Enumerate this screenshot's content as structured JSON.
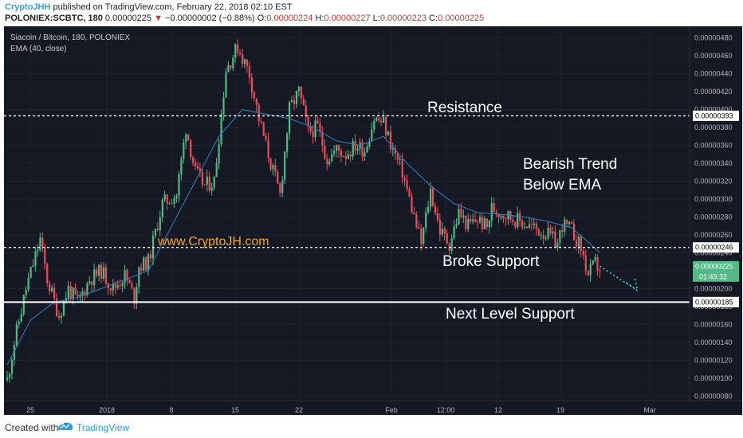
{
  "header": {
    "author": "CryptoJHH",
    "published": "published on TradingView.com, February 22, 2018 02:10 EST",
    "symbol": "POLONIEX:SCBTC, 180",
    "last": "0.00000225",
    "change_arrow": "▼",
    "change": "−0.00000002 (−0.88%)",
    "o_label": "O:",
    "o": "0.00000224",
    "h_label": "H:",
    "h": "0.00000227",
    "l_label": "L:",
    "l": "0.00000223",
    "c_label": "C:",
    "c": "0.00000225"
  },
  "legend": {
    "title": "Siacoin / Bitcoin, 180, POLONIEX",
    "indicator": "EMA (40, close)"
  },
  "annotations": {
    "resistance": "Resistance",
    "bearish_line1": "Bearish Trend",
    "bearish_line2": "Below EMA",
    "website": "www.CryptoJH.com",
    "broke_support": "Broke Support",
    "next_support": "Next Level Support"
  },
  "price_badges": {
    "resistance": "0.00000393",
    "support": "0.00000246",
    "next_support": "0.00000185",
    "current": "0.00000225",
    "countdown": "01:49:32"
  },
  "footer": {
    "created": "Created with",
    "brand": "TradingView"
  },
  "colors": {
    "background": "#151924",
    "up_candle": "#53b987",
    "down_candle": "#eb4d5c",
    "ema_line": "#3a7fc1",
    "website_text": "#f5a623",
    "projection": "#4dd0e1",
    "current_badge": "#53b987"
  },
  "chart_data": {
    "type": "candlestick",
    "y_ticks": [
      "0.00000480",
      "0.00000460",
      "0.00000440",
      "0.00000420",
      "0.00000400",
      "0.00000380",
      "0.00000360",
      "0.00000340",
      "0.00000320",
      "0.00000300",
      "0.00000280",
      "0.00000260",
      "0.00000240",
      "0.00000220",
      "0.00000200",
      "0.00000180",
      "0.00000160",
      "0.00000140",
      "0.00000120",
      "0.00000100",
      "0.00000080"
    ],
    "x_ticks": [
      "25",
      "2018",
      "8",
      "15",
      "22",
      "Feb",
      "12:00",
      "12",
      "19",
      "Mar"
    ],
    "ylim": [
      7.5e-07,
      4.93e-06
    ],
    "levels": [
      {
        "name": "resistance",
        "value": 3.93e-06,
        "style": "dashed"
      },
      {
        "name": "support",
        "value": 2.46e-06,
        "style": "dashed"
      },
      {
        "name": "next_support",
        "value": 1.85e-06,
        "style": "solid"
      }
    ],
    "price_path": [
      [
        0,
        9.8e-07
      ],
      [
        3,
        1.4e-06
      ],
      [
        8,
        2e-06
      ],
      [
        14,
        2.55e-06
      ],
      [
        17,
        2.1e-06
      ],
      [
        22,
        1.7e-06
      ],
      [
        26,
        2e-06
      ],
      [
        30,
        1.85e-06
      ],
      [
        35,
        2.1e-06
      ],
      [
        40,
        2.2e-06
      ],
      [
        45,
        2e-06
      ],
      [
        50,
        2.15e-06
      ],
      [
        54,
        1.9e-06
      ],
      [
        56,
        2.25e-06
      ],
      [
        60,
        2.3e-06
      ],
      [
        66,
        2.95e-06
      ],
      [
        72,
        3.05e-06
      ],
      [
        76,
        3.8e-06
      ],
      [
        80,
        3.3e-06
      ],
      [
        84,
        3.15e-06
      ],
      [
        88,
        3.2e-06
      ],
      [
        93,
        4.45e-06
      ],
      [
        98,
        4.7e-06
      ],
      [
        103,
        4.4e-06
      ],
      [
        107,
        3.9e-06
      ],
      [
        112,
        3.4e-06
      ],
      [
        116,
        3.05e-06
      ],
      [
        120,
        4e-06
      ],
      [
        124,
        4.2e-06
      ],
      [
        128,
        3.75e-06
      ],
      [
        132,
        3.8e-06
      ],
      [
        136,
        3.45e-06
      ],
      [
        140,
        3.55e-06
      ],
      [
        144,
        3.5e-06
      ],
      [
        148,
        3.6e-06
      ],
      [
        152,
        3.55e-06
      ],
      [
        156,
        3.9e-06
      ],
      [
        160,
        3.85e-06
      ],
      [
        164,
        3.55e-06
      ],
      [
        168,
        3.3e-06
      ],
      [
        172,
        2.9e-06
      ],
      [
        176,
        2.5e-06
      ],
      [
        180,
        3.1e-06
      ],
      [
        184,
        2.65e-06
      ],
      [
        188,
        2.5e-06
      ],
      [
        192,
        2.85e-06
      ],
      [
        196,
        2.7e-06
      ],
      [
        200,
        2.78e-06
      ],
      [
        204,
        2.68e-06
      ],
      [
        206,
        2.9e-06
      ],
      [
        210,
        2.85e-06
      ],
      [
        214,
        2.8e-06
      ],
      [
        218,
        2.75e-06
      ],
      [
        222,
        2.7e-06
      ],
      [
        226,
        2.65e-06
      ],
      [
        230,
        2.6e-06
      ],
      [
        234,
        2.5e-06
      ],
      [
        236,
        2.72e-06
      ],
      [
        240,
        2.65e-06
      ],
      [
        244,
        2.45e-06
      ],
      [
        247,
        2.15e-06
      ],
      [
        250,
        2.28e-06
      ],
      [
        252,
        2.22e-06
      ]
    ],
    "ema_path": [
      [
        0,
        1.15e-06
      ],
      [
        10,
        1.65e-06
      ],
      [
        20,
        1.85e-06
      ],
      [
        30,
        1.9e-06
      ],
      [
        40,
        2e-06
      ],
      [
        50,
        2.1e-06
      ],
      [
        60,
        2.2e-06
      ],
      [
        70,
        2.7e-06
      ],
      [
        80,
        3.2e-06
      ],
      [
        90,
        3.7e-06
      ],
      [
        100,
        4e-06
      ],
      [
        110,
        3.95e-06
      ],
      [
        120,
        3.9e-06
      ],
      [
        130,
        3.8e-06
      ],
      [
        140,
        3.65e-06
      ],
      [
        150,
        3.6e-06
      ],
      [
        160,
        3.7e-06
      ],
      [
        170,
        3.4e-06
      ],
      [
        180,
        3.15e-06
      ],
      [
        190,
        2.95e-06
      ],
      [
        200,
        2.85e-06
      ],
      [
        210,
        2.83e-06
      ],
      [
        220,
        2.8e-06
      ],
      [
        230,
        2.75e-06
      ],
      [
        240,
        2.68e-06
      ],
      [
        248,
        2.5e-06
      ],
      [
        252,
        2.4e-06
      ]
    ],
    "projection": [
      [
        252,
        2.25e-06
      ],
      [
        268,
        1.98e-06
      ]
    ]
  }
}
